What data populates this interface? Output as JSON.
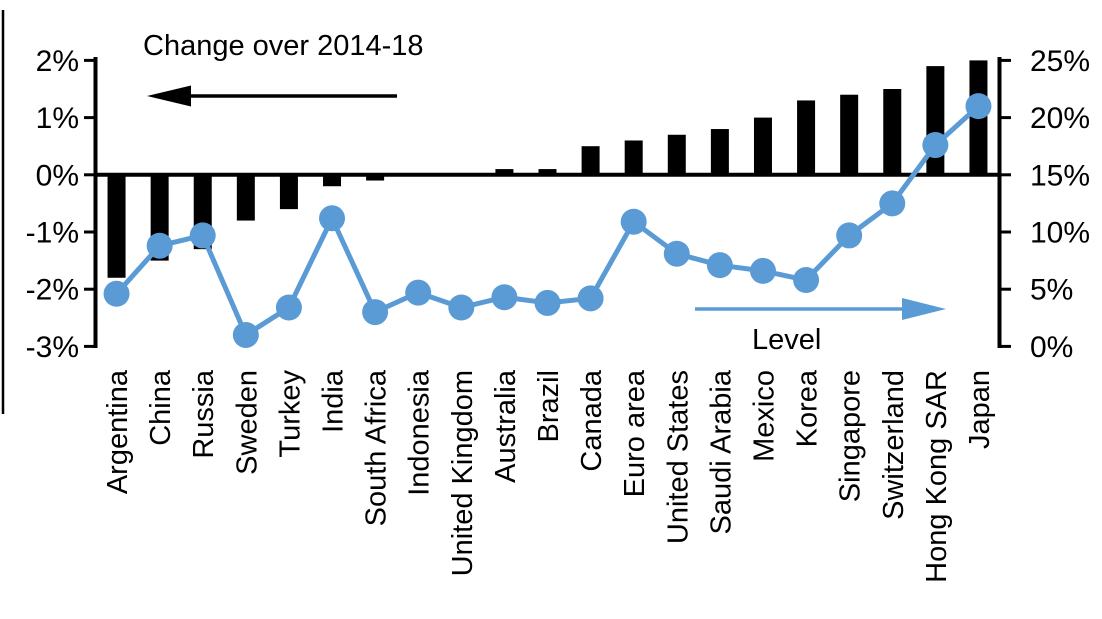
{
  "chart_data": {
    "type": "bar",
    "subtype": "bar-line-combo",
    "title": "Change over 2014-18",
    "categories": [
      "Argentina",
      "China",
      "Russia",
      "Sweden",
      "Turkey",
      "India",
      "South Africa",
      "Indonesia",
      "United Kingdom",
      "Australia",
      "Brazil",
      "Canada",
      "Euro area",
      "United States",
      "Saudi Arabia",
      "Mexico",
      "Korea",
      "Singapore",
      "Switzerland",
      "Hong Kong SAR",
      "Japan"
    ],
    "series": [
      {
        "name": "Change over 2014-18",
        "type": "bar",
        "axis": "left",
        "unit": "percentage points",
        "color": "#000000",
        "values": [
          -1.8,
          -1.5,
          -1.3,
          -0.8,
          -0.6,
          -0.2,
          -0.1,
          0,
          0,
          0.1,
          0.1,
          0.5,
          0.6,
          0.7,
          0.8,
          1.0,
          1.3,
          1.4,
          1.5,
          1.9,
          2.0
        ]
      },
      {
        "name": "Level",
        "type": "line",
        "axis": "right",
        "unit": "%",
        "color": "#5b9bd5",
        "values": [
          4.6,
          8.8,
          9.7,
          1.0,
          3.4,
          11.2,
          3.0,
          4.7,
          3.4,
          4.3,
          3.8,
          4.2,
          10.9,
          8.1,
          7.1,
          6.6,
          5.8,
          9.7,
          12.5,
          17.6,
          21.0
        ]
      }
    ],
    "left_axis": {
      "position": "left",
      "range": [
        -3,
        2
      ],
      "tick_values": [
        2,
        1,
        0,
        -1,
        -2,
        -3
      ],
      "tick_labels": [
        "2%",
        "1%",
        "0%",
        "-1%",
        "-2%",
        "-3%"
      ]
    },
    "right_axis": {
      "position": "right",
      "range": [
        0,
        25
      ],
      "tick_values": [
        25,
        20,
        15,
        10,
        5,
        0
      ],
      "tick_labels": [
        "25%",
        "20%",
        "15%",
        "10%",
        "5%",
        "0%"
      ]
    },
    "annotations": [
      {
        "text": "Change over 2014-18",
        "arrow_direction": "left",
        "arrow_color": "#000000"
      },
      {
        "text": "Level",
        "arrow_direction": "right",
        "arrow_color": "#5b9bd5"
      }
    ],
    "grid": false,
    "legend_position": "none",
    "colors": {
      "bar": "#000000",
      "line": "#5b9bd5",
      "background": "#ffffff"
    }
  }
}
